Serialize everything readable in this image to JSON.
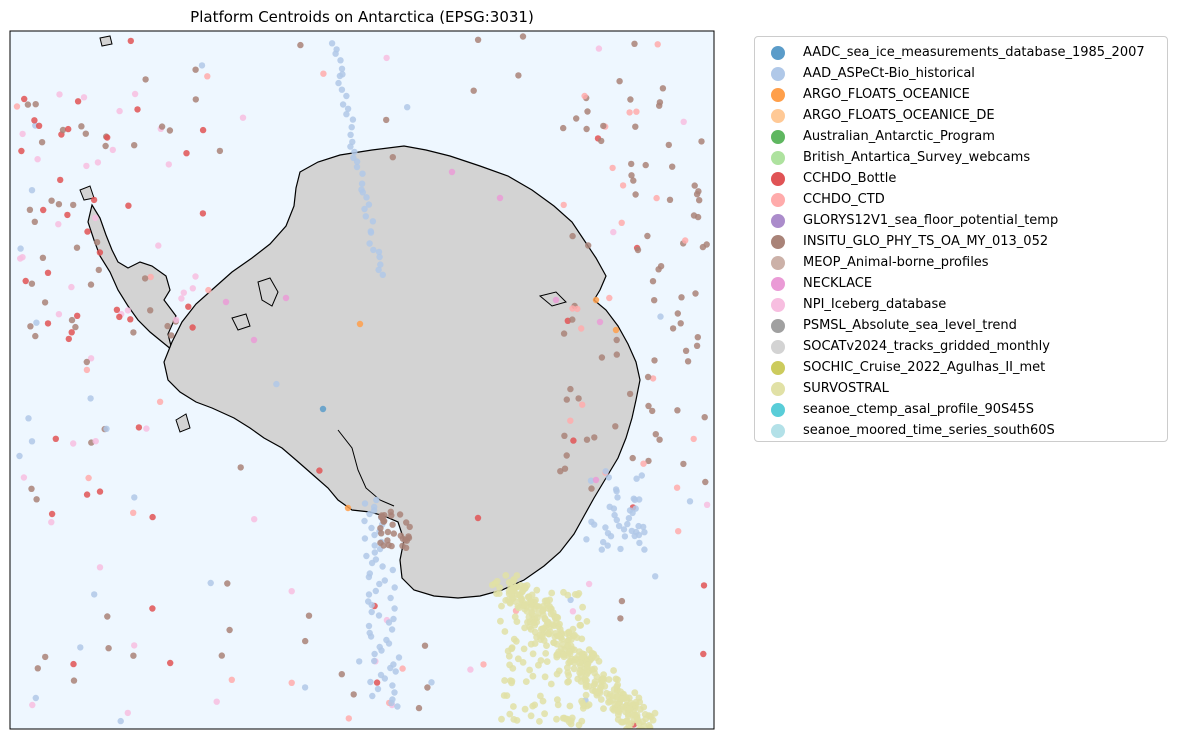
{
  "title": "Platform Centroids on Antarctica (EPSG:3031)",
  "map": {
    "projection": "EPSG:3031",
    "ocean_color": "#eef7ff",
    "land_color": "#d3d3d3",
    "coastline_color": "#000000"
  },
  "legend": {
    "placement": "outside right",
    "items": [
      {
        "label": "AADC_sea_ice_measurements_database_1985_2007",
        "color": "#5b9cc9"
      },
      {
        "label": "AAD_ASPeCt-Bio_historical",
        "color": "#b0c8e8"
      },
      {
        "label": "ARGO_FLOATS_OCEANICE",
        "color": "#ff9f4a"
      },
      {
        "label": "ARGO_FLOATS_OCEANICE_DE",
        "color": "#ffc996"
      },
      {
        "label": "Australian_Antarctic_Program",
        "color": "#5fb760"
      },
      {
        "label": "British_Antartica_Survey_webcams",
        "color": "#aee29f"
      },
      {
        "label": "CCHDO_Bottle",
        "color": "#e05355"
      },
      {
        "label": "CCHDO_CTD",
        "color": "#ffabab"
      },
      {
        "label": "GLORYS12V1_sea_floor_potential_temp",
        "color": "#ab8ccb"
      },
      {
        "label": "INSITU_GLO_PHY_TS_OA_MY_013_052",
        "color": "#a98378"
      },
      {
        "label": "MEOP_Animal-borne_profiles",
        "color": "#ccb1a8"
      },
      {
        "label": "NECKLACE",
        "color": "#ea9bd6"
      },
      {
        "label": "NPI_Iceberg_database",
        "color": "#f7bee0"
      },
      {
        "label": "PSMSL_Absolute_sea_level_trend",
        "color": "#a0a0a0"
      },
      {
        "label": "SOCATv2024_tracks_gridded_monthly",
        "color": "#d3d3d3"
      },
      {
        "label": "SOCHIC_Cruise_2022_Agulhas_II_met",
        "color": "#cccb5d"
      },
      {
        "label": "SURVOSTRAL",
        "color": "#e1e1a6"
      },
      {
        "label": "seanoe_ctemp_asal_profile_90S45S",
        "color": "#59cdd8"
      },
      {
        "label": "seanoe_moored_time_series_south60S",
        "color": "#b3e1e8"
      }
    ]
  }
}
